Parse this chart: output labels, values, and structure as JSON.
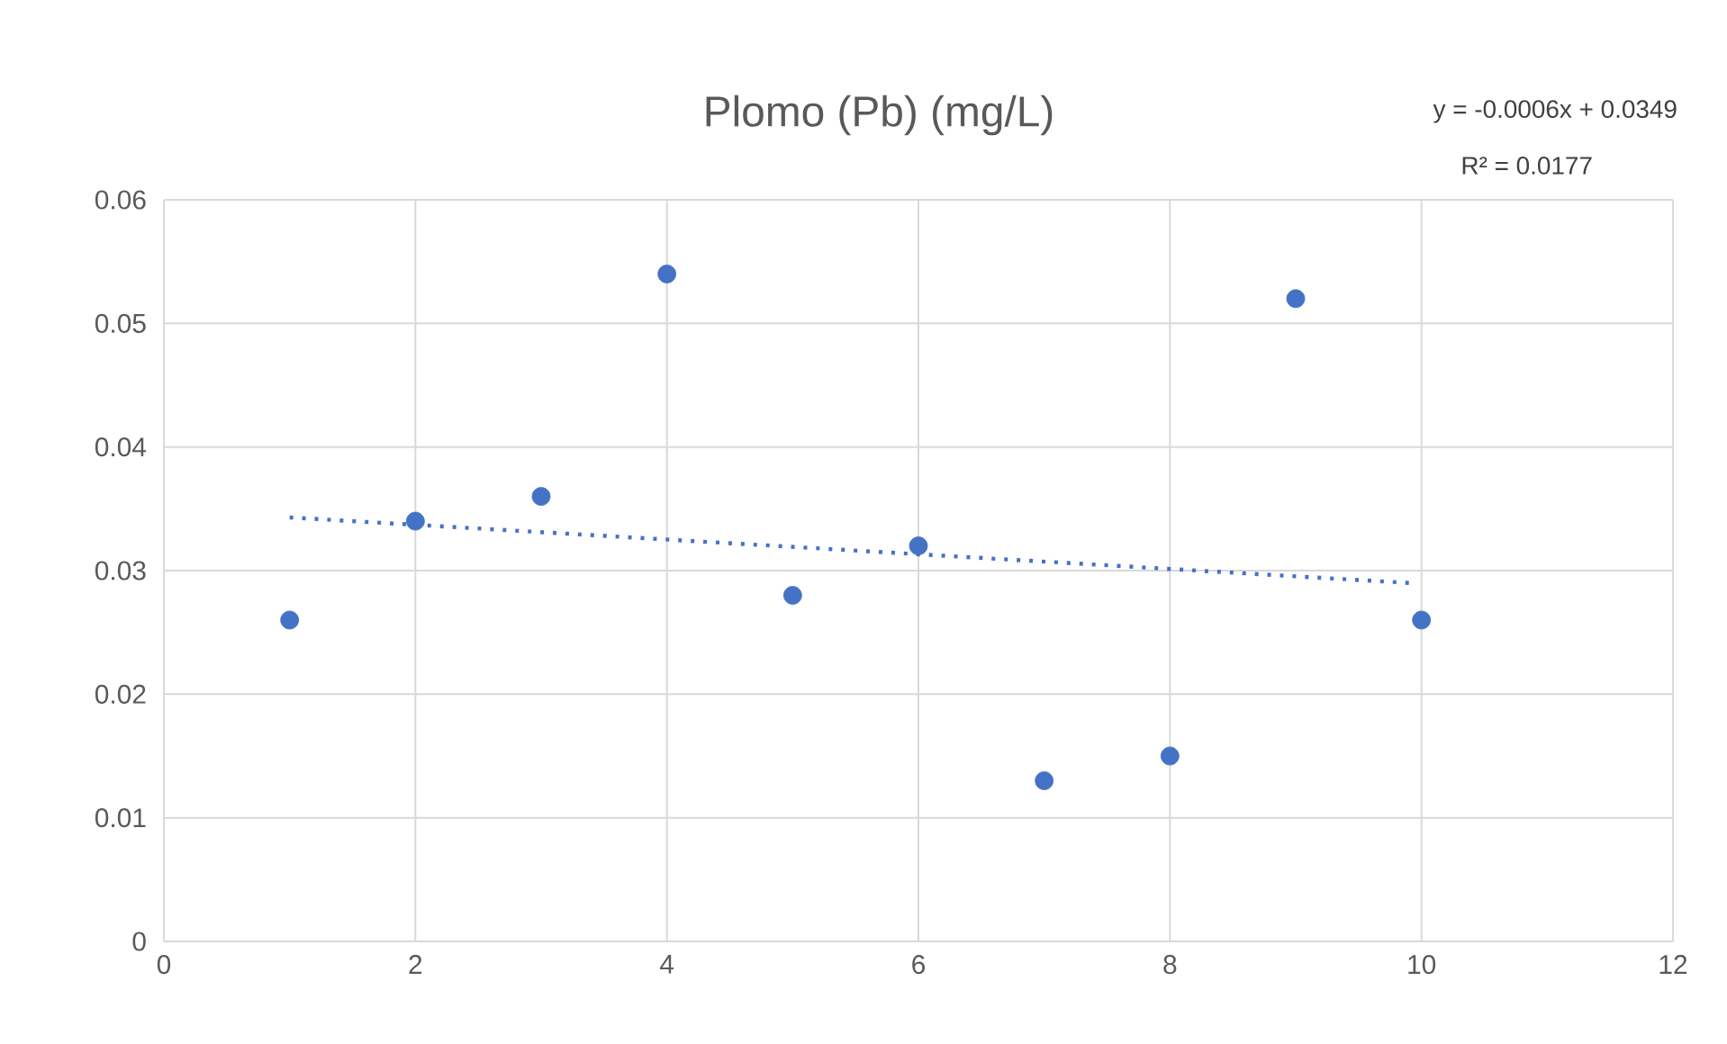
{
  "chart_data": {
    "type": "scatter",
    "title": "Plomo (Pb) (mg/L)",
    "annotations": [
      "y = -0.0006x + 0.0349",
      "R² = 0.0177"
    ],
    "x": [
      1,
      2,
      3,
      4,
      5,
      6,
      7,
      8,
      9,
      10
    ],
    "series": [
      {
        "color": "#4472c4",
        "marker": "circle",
        "values": [
          0.026,
          0.034,
          0.036,
          0.054,
          0.028,
          0.032,
          0.013,
          0.015,
          0.052,
          0.026
        ]
      },
      {
        "type": "line",
        "color": "#4472c4",
        "marker": "none",
        "line_style": "dotted",
        "x": [
          1,
          9.9
        ],
        "values": [
          0.0343,
          0.029
        ]
      }
    ],
    "xlim": [
      0,
      12
    ],
    "xticks": [
      0,
      2,
      4,
      6,
      8,
      10,
      12
    ],
    "ylim": [
      0,
      0.06
    ],
    "yticks": [
      0,
      0.01,
      0.02,
      0.03,
      0.04,
      0.05,
      0.06
    ],
    "grid": true
  }
}
